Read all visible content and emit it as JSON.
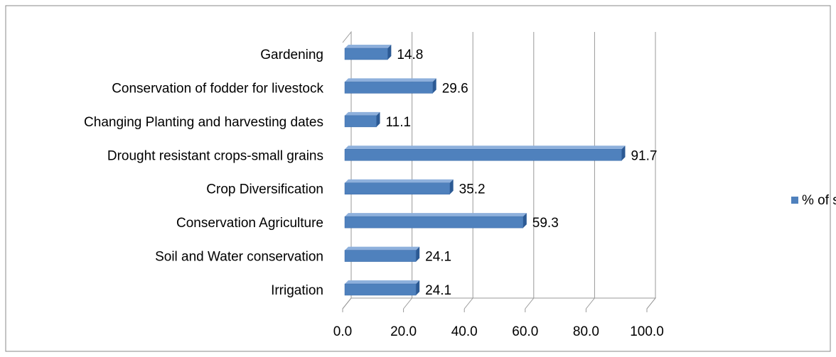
{
  "chart_data": {
    "type": "bar",
    "orientation": "horizontal",
    "categories": [
      "Gardening",
      "Conservation of fodder for livestock",
      "Changing Planting and harvesting dates",
      "Drought resistant crops-small grains",
      "Crop Diversification",
      "Conservation Agriculture",
      "Soil and Water conservation",
      "Irrigation"
    ],
    "series": [
      {
        "name": "% of sample",
        "color": "#4f81bd",
        "values": [
          14.8,
          29.6,
          11.1,
          91.7,
          35.2,
          59.3,
          24.1,
          24.1
        ]
      }
    ],
    "xlim": [
      0,
      100
    ],
    "xticks": [
      {
        "value": 0,
        "label": "0.0"
      },
      {
        "value": 20,
        "label": "20.0"
      },
      {
        "value": 40,
        "label": "40.0"
      },
      {
        "value": 60,
        "label": "60.0"
      },
      {
        "value": 80,
        "label": "80.0"
      },
      {
        "value": 100,
        "label": "100.0"
      }
    ],
    "grid": true,
    "legend": "right"
  }
}
